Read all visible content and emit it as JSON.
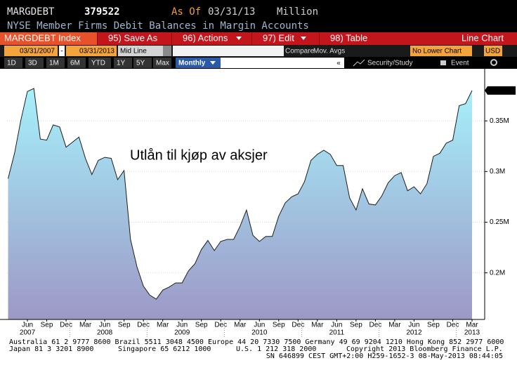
{
  "header": {
    "ticker": "MARGDEBT",
    "value": "379522",
    "as_of": "As Of",
    "date": "03/31/13",
    "unit": "Million",
    "description": "NYSE Member Firms Debit Balances in Margin Accounts"
  },
  "toolbar": {
    "security": "MARGDEBT Index",
    "buttons": [
      "95) Save As",
      "96) Actions",
      "97) Edit",
      "98) Table"
    ],
    "chart_type": "Line Chart"
  },
  "range": {
    "start": "03/31/2007",
    "separator": "-",
    "end": "03/31/2013",
    "style": "Mid Line",
    "compare": "Compare",
    "mov_avgs": "Mov. Avgs",
    "lower": "No Lower Chart",
    "currency": "USD"
  },
  "periods": {
    "buttons": [
      "1D",
      "3D",
      "1M",
      "6M",
      "YTD",
      "1Y",
      "5Y",
      "Max"
    ],
    "frequency": "Monthly",
    "collapse": "«",
    "study": "Security/Study",
    "event": "Event"
  },
  "chart_data": {
    "type": "area",
    "annotation": "Utlån til kjøp av aksjer",
    "categories": [
      null,
      null,
      null,
      "Jun",
      null,
      null,
      "Sep",
      null,
      null,
      "Dec",
      null,
      null,
      "Mar",
      null,
      null,
      "Jun",
      null,
      null,
      "Sep",
      null,
      null,
      "Dec",
      null,
      null,
      "Mar",
      null,
      null,
      "Jun",
      null,
      null,
      "Sep",
      null,
      null,
      "Dec",
      null,
      null,
      "Mar",
      null,
      null,
      "Jun",
      null,
      null,
      "Sep",
      null,
      null,
      "Dec",
      null,
      null,
      "Mar",
      null,
      null,
      "Jun",
      null,
      null,
      "Sep",
      null,
      null,
      "Dec",
      null,
      null,
      "Mar",
      null,
      null,
      "Jun",
      null,
      null,
      "Sep",
      null,
      null,
      "Dec",
      null,
      null,
      "Mar"
    ],
    "years": [
      "2007",
      "2008",
      "2009",
      "2010",
      "2011",
      "2012",
      "2013"
    ],
    "values": [
      0.293,
      0.318,
      0.351,
      0.379,
      0.382,
      0.332,
      0.331,
      0.346,
      0.344,
      0.324,
      0.329,
      0.334,
      0.313,
      0.297,
      0.311,
      0.314,
      0.313,
      0.292,
      0.301,
      0.233,
      0.206,
      0.187,
      0.178,
      0.174,
      0.183,
      0.186,
      0.19,
      0.19,
      0.202,
      0.209,
      0.223,
      0.232,
      0.222,
      0.231,
      0.233,
      0.233,
      0.246,
      0.262,
      0.237,
      0.231,
      0.236,
      0.236,
      0.256,
      0.269,
      0.275,
      0.278,
      0.29,
      0.311,
      0.317,
      0.321,
      0.317,
      0.306,
      0.306,
      0.274,
      0.262,
      0.283,
      0.268,
      0.267,
      0.276,
      0.289,
      0.296,
      0.299,
      0.281,
      0.285,
      0.278,
      0.288,
      0.315,
      0.318,
      0.328,
      0.331,
      0.365,
      0.367,
      0.38
    ],
    "value_labels": [
      null,
      null,
      null,
      null,
      null,
      null,
      null,
      null,
      null,
      null,
      null,
      null,
      null,
      null,
      null,
      null,
      null,
      null,
      null,
      null,
      null,
      null,
      null,
      null,
      null,
      null,
      null,
      null,
      null,
      null,
      null,
      null,
      null,
      null,
      null,
      null,
      null,
      null,
      null,
      null,
      null,
      null,
      null,
      null,
      null,
      null,
      null,
      null,
      null,
      null,
      null,
      null,
      null,
      null,
      null,
      null,
      null,
      null,
      null,
      null,
      null,
      null,
      null,
      null,
      null,
      null,
      null,
      null,
      null,
      null,
      null,
      null,
      "0.380M"
    ],
    "color": "#1e1e1e",
    "fill_colors": [
      "#a6f0fb",
      "#9d98c6"
    ],
    "ylim": [
      0.154,
      0.4
    ],
    "yticks": [
      {
        "value": 0.2,
        "label": "0.2M"
      },
      {
        "value": 0.25,
        "label": "0.25M"
      },
      {
        "value": 0.3,
        "label": "0.3M"
      },
      {
        "value": 0.35,
        "label": "0.35M"
      }
    ],
    "y_axis_side": "right",
    "grid": true
  },
  "footer": {
    "line1": "Australia 61 2 9777 8600 Brazil 5511 3048 4500 Europe 44 20 7330 7500 Germany 49 69 9204 1210 Hong Kong 852 2977 6000",
    "line2": [
      "Japan 81 3 3201 8900",
      "Singapore 65 6212 1000",
      "U.S. 1 212 318 2000",
      "Copyright 2013 Bloomberg Finance L.P."
    ],
    "line3": "SN 646899 CEST GMT+2:00 H259-1652-3 08-May-2013 08:44:05"
  }
}
